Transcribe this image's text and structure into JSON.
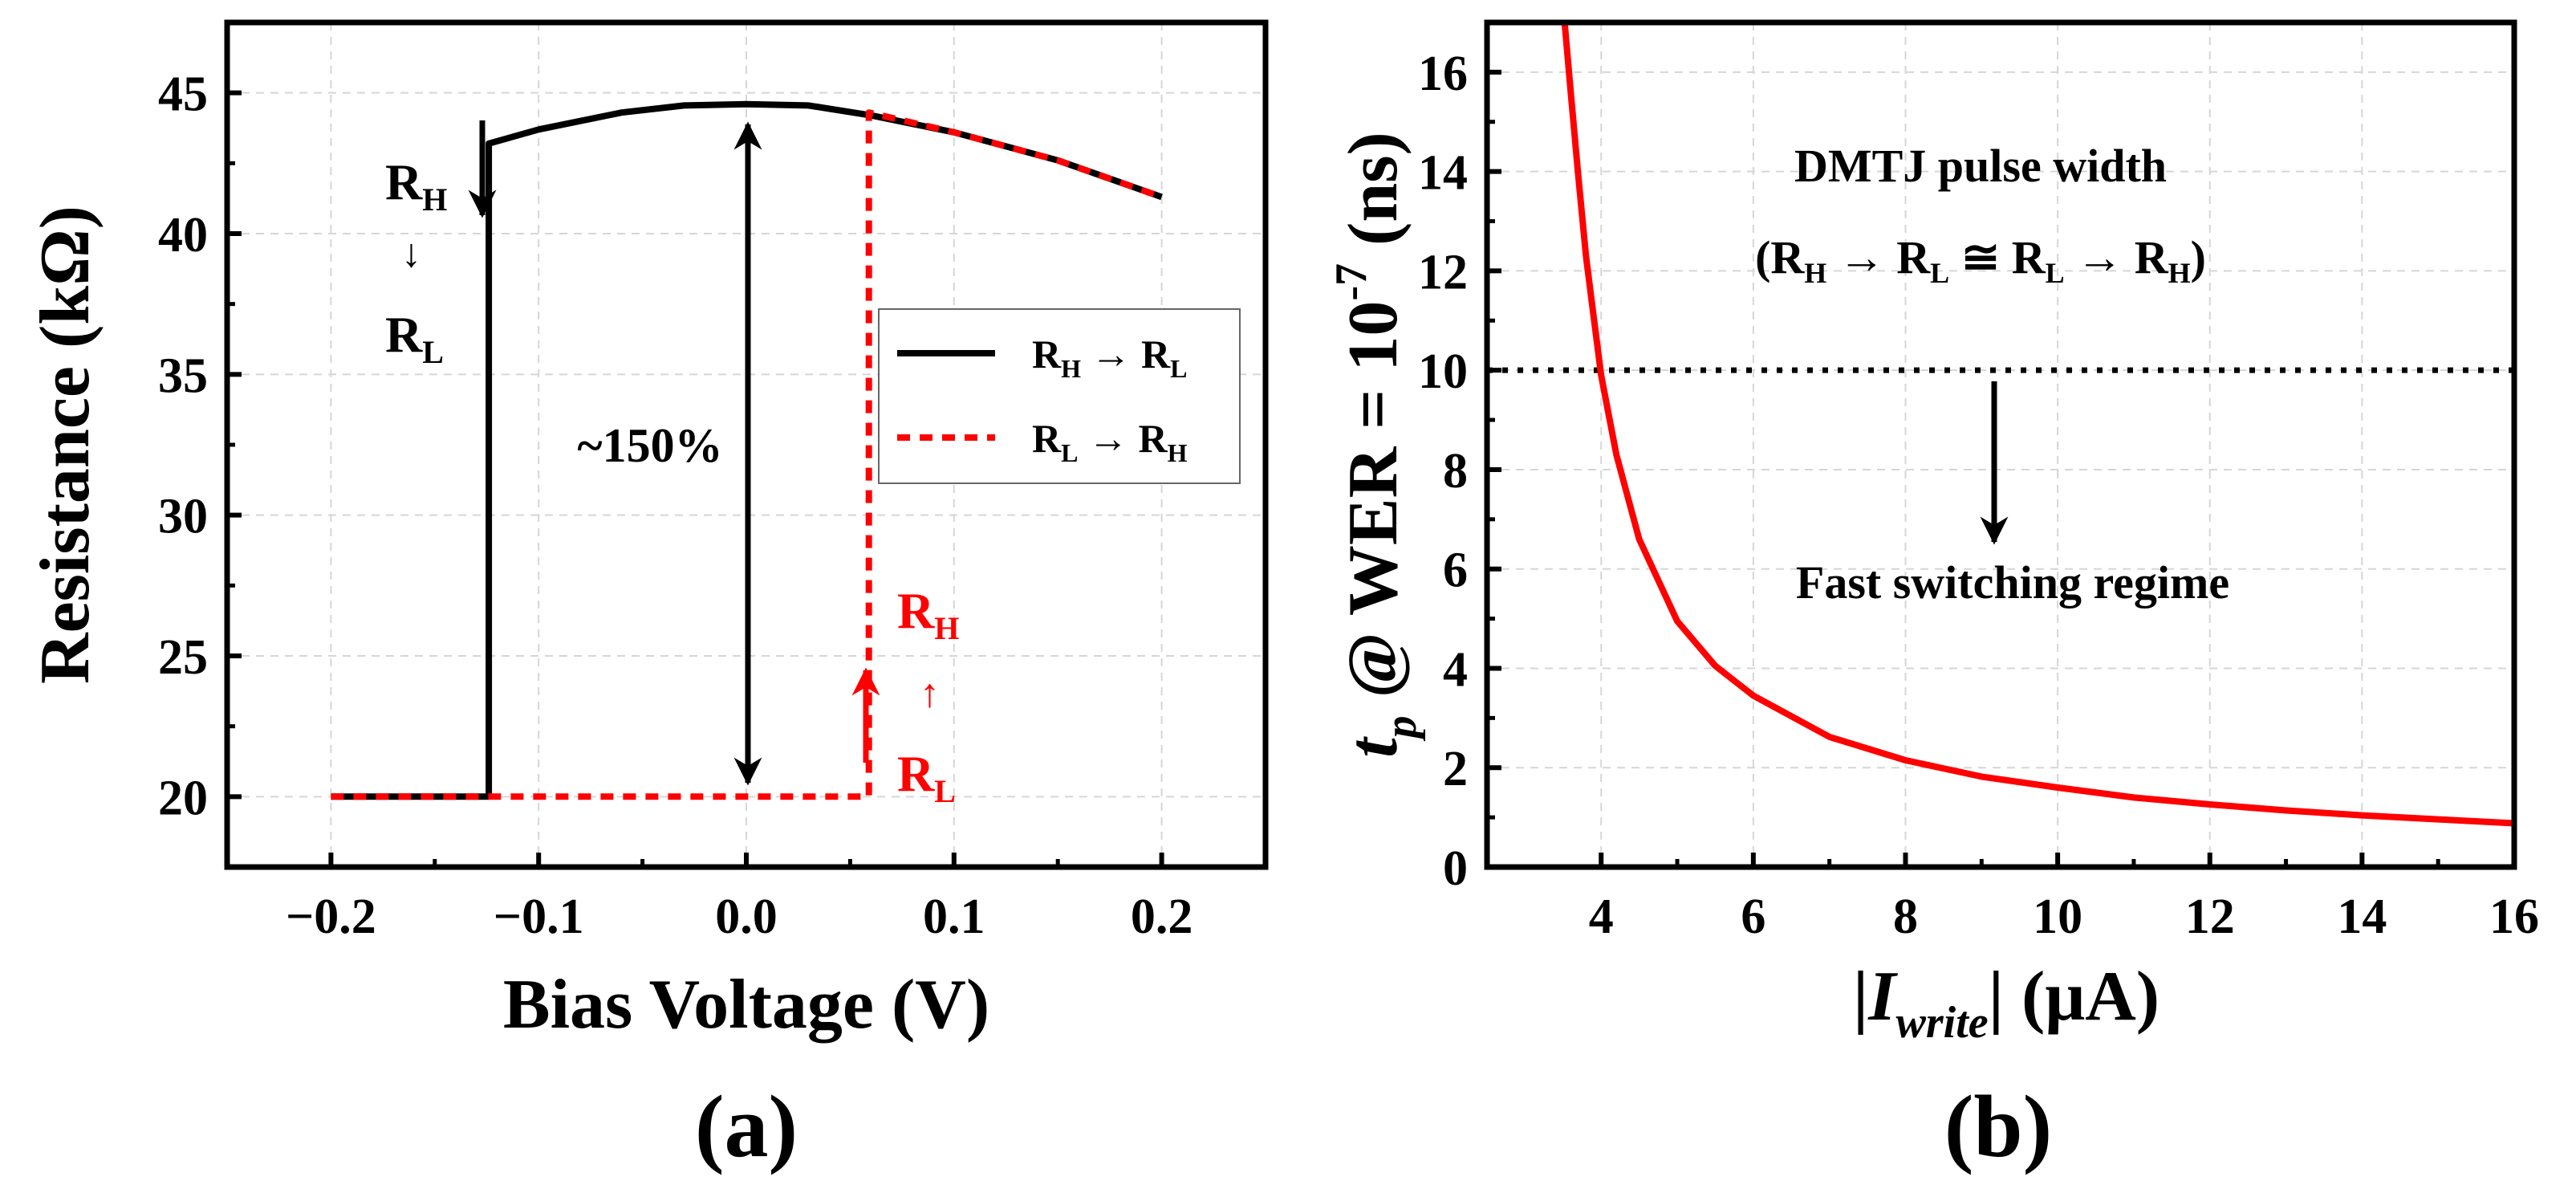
{
  "colors": {
    "black": "#000000",
    "red": "#ff0000",
    "grid": "#d6d6d6"
  },
  "chart_data": [
    {
      "panel_label": "(a)",
      "type": "line",
      "title": "",
      "xlabel": "Bias Voltage (V)",
      "ylabel": "Resistance (kΩ)",
      "xlim": [
        -0.25,
        0.25
      ],
      "ylim": [
        17.5,
        47.5
      ],
      "xticks": [
        -0.2,
        -0.1,
        0.0,
        0.1,
        0.2
      ],
      "xtick_labels": [
        "−0.2",
        "−0.1",
        "0.0",
        "0.1",
        "0.2"
      ],
      "yticks": [
        20,
        25,
        30,
        35,
        40,
        45
      ],
      "ytick_labels": [
        "20",
        "25",
        "30",
        "35",
        "40",
        "45"
      ],
      "grid": true,
      "legend_position": "right",
      "legend": [
        {
          "from": "R",
          "from_sub": "H",
          "arrow": "→",
          "to": "R",
          "to_sub": "L",
          "style": "solid",
          "color": "#000000"
        },
        {
          "from": "R",
          "from_sub": "L",
          "arrow": "→",
          "to": "R",
          "to_sub": "H",
          "style": "dashed",
          "color": "#ff0000"
        }
      ],
      "series": [
        {
          "name": "RH → RL",
          "style": "solid",
          "color": "#000000",
          "x": [
            -0.2,
            -0.124,
            -0.124,
            -0.1,
            -0.06,
            -0.03,
            0.0,
            0.03,
            0.06,
            0.1,
            0.15,
            0.2
          ],
          "y": [
            20.0,
            20.0,
            43.2,
            43.7,
            44.3,
            44.55,
            44.6,
            44.55,
            44.2,
            43.6,
            42.6,
            41.3
          ]
        },
        {
          "name": "RL → RH",
          "style": "dashed",
          "color": "#ff0000",
          "x": [
            -0.2,
            0.059,
            0.059,
            0.1,
            0.15,
            0.2
          ],
          "y": [
            20.0,
            20.0,
            44.3,
            43.6,
            42.6,
            41.3
          ]
        }
      ],
      "annotations": {
        "left_label": {
          "top": "R",
          "top_sub": "H",
          "arrow": "↓",
          "bottom": "R",
          "bottom_sub": "L"
        },
        "right_label": {
          "top": "R",
          "top_sub": "H",
          "arrow": "↑",
          "bottom": "R",
          "bottom_sub": "L"
        },
        "tmr_text": "~150%"
      }
    },
    {
      "panel_label": "(b)",
      "type": "line",
      "title": "",
      "xlabel_prefix": "|",
      "xlabel_italic": "I",
      "xlabel_sub": "write",
      "xlabel_suffix": "| (μA)",
      "ylabel_t": "t",
      "ylabel_p": "p",
      "ylabel_main": " @ WER = 10",
      "ylabel_exp": "-7",
      "ylabel_unit": " (ns)",
      "xlim": [
        2.5,
        16
      ],
      "ylim": [
        0,
        17
      ],
      "xticks": [
        4,
        6,
        8,
        10,
        12,
        14,
        16
      ],
      "xtick_labels": [
        "4",
        "6",
        "8",
        "10",
        "12",
        "14",
        "16"
      ],
      "yticks": [
        0,
        2,
        4,
        6,
        8,
        10,
        12,
        14,
        16
      ],
      "ytick_labels": [
        "0",
        "2",
        "4",
        "6",
        "8",
        "10",
        "12",
        "14",
        "16"
      ],
      "grid": true,
      "series": [
        {
          "name": "DMTJ pulse width",
          "style": "solid",
          "color": "#ff0000",
          "x": [
            3.52,
            3.6,
            3.7,
            3.8,
            3.9,
            4.0,
            4.2,
            4.5,
            5.0,
            5.5,
            6.0,
            7.0,
            8.0,
            9.0,
            10.0,
            11.0,
            12.0,
            13.0,
            14.0,
            15.0,
            16.0
          ],
          "y": [
            17.0,
            15.6,
            13.9,
            12.3,
            11.1,
            9.9,
            8.3,
            6.6,
            4.95,
            4.05,
            3.45,
            2.62,
            2.15,
            1.82,
            1.6,
            1.4,
            1.26,
            1.14,
            1.04,
            0.96,
            0.88
          ]
        }
      ],
      "threshold": {
        "y": 10,
        "style": "dotted",
        "color": "#000000"
      },
      "annotations": {
        "title_line1": "DMTJ pulse width",
        "title_line2": {
          "open": "(R",
          "s1": "H",
          "t1": " → R",
          "s2": "L",
          "t2": " ≅ R",
          "s3": "L",
          "t3": " → R",
          "s4": "H",
          "close": ")"
        },
        "regime_text": "Fast switching regime"
      }
    }
  ]
}
